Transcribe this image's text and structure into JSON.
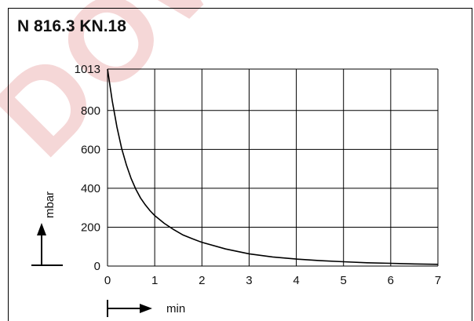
{
  "watermark": "DOWN",
  "chart_data": {
    "type": "line",
    "title": "N 816.3 KN.18",
    "xlabel": "min",
    "ylabel": "mbar",
    "xlim": [
      0,
      7
    ],
    "ylim": [
      0,
      1013
    ],
    "xticks": [
      0,
      1,
      2,
      3,
      4,
      5,
      6,
      7
    ],
    "yticks": [
      0,
      200,
      400,
      600,
      800,
      1013
    ],
    "grid": true,
    "series": [
      {
        "x": [
          0,
          0.1,
          0.2,
          0.3,
          0.4,
          0.5,
          0.6,
          0.7,
          0.8,
          0.9,
          1.0,
          1.2,
          1.4,
          1.6,
          1.8,
          2.0,
          2.5,
          3.0,
          3.5,
          4.0,
          4.5,
          5.0,
          5.5,
          6.0,
          6.5,
          7.0
        ],
        "y": [
          1013,
          850,
          715,
          605,
          520,
          450,
          395,
          350,
          315,
          285,
          260,
          220,
          188,
          160,
          140,
          122,
          88,
          63,
          47,
          36,
          28,
          22,
          17,
          14,
          11,
          9
        ]
      }
    ]
  }
}
